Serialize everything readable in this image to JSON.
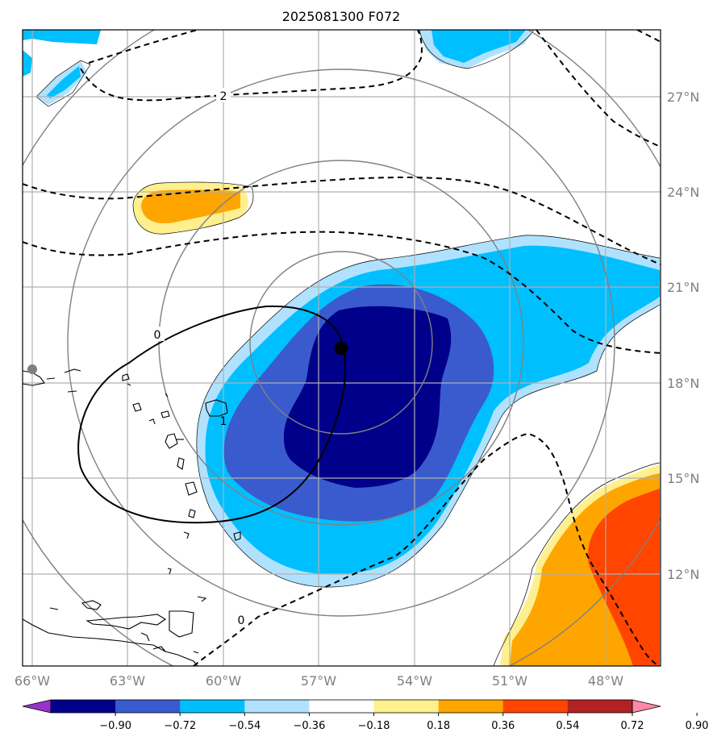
{
  "title": "2025081300 F072",
  "map": {
    "lon_range": [
      -67,
      -46.3
    ],
    "lat_range": [
      9.5,
      29.4
    ],
    "lon_ticks": [
      "66°W",
      "63°W",
      "60°W",
      "57°W",
      "54°W",
      "51°W",
      "48°W"
    ],
    "lat_ticks": [
      "27°N",
      "24°N",
      "21°N",
      "18°N",
      "15°N",
      "12°N"
    ],
    "storm_center": {
      "lon": -56.2,
      "lat": 19.2
    },
    "reference_point": {
      "lon": -66.7,
      "lat": 18.4
    },
    "range_rings_deg": [
      3,
      5.5,
      8.5,
      11.5
    ],
    "contour_labels": [
      "2",
      "0",
      "1",
      "0"
    ]
  },
  "colorbar": {
    "ticks": [
      "−0.90",
      "−0.72",
      "−0.54",
      "−0.36",
      "−0.18",
      "0.18",
      "0.36",
      "0.54",
      "0.72",
      "0.90"
    ],
    "colors": [
      "#9932cc",
      "#00008b",
      "#3a5bcd",
      "#00bfff",
      "#b0e2ff",
      "#ffffff",
      "#fff08f",
      "#ffa500",
      "#ff4500",
      "#b22222",
      "#ff88aa"
    ]
  }
}
